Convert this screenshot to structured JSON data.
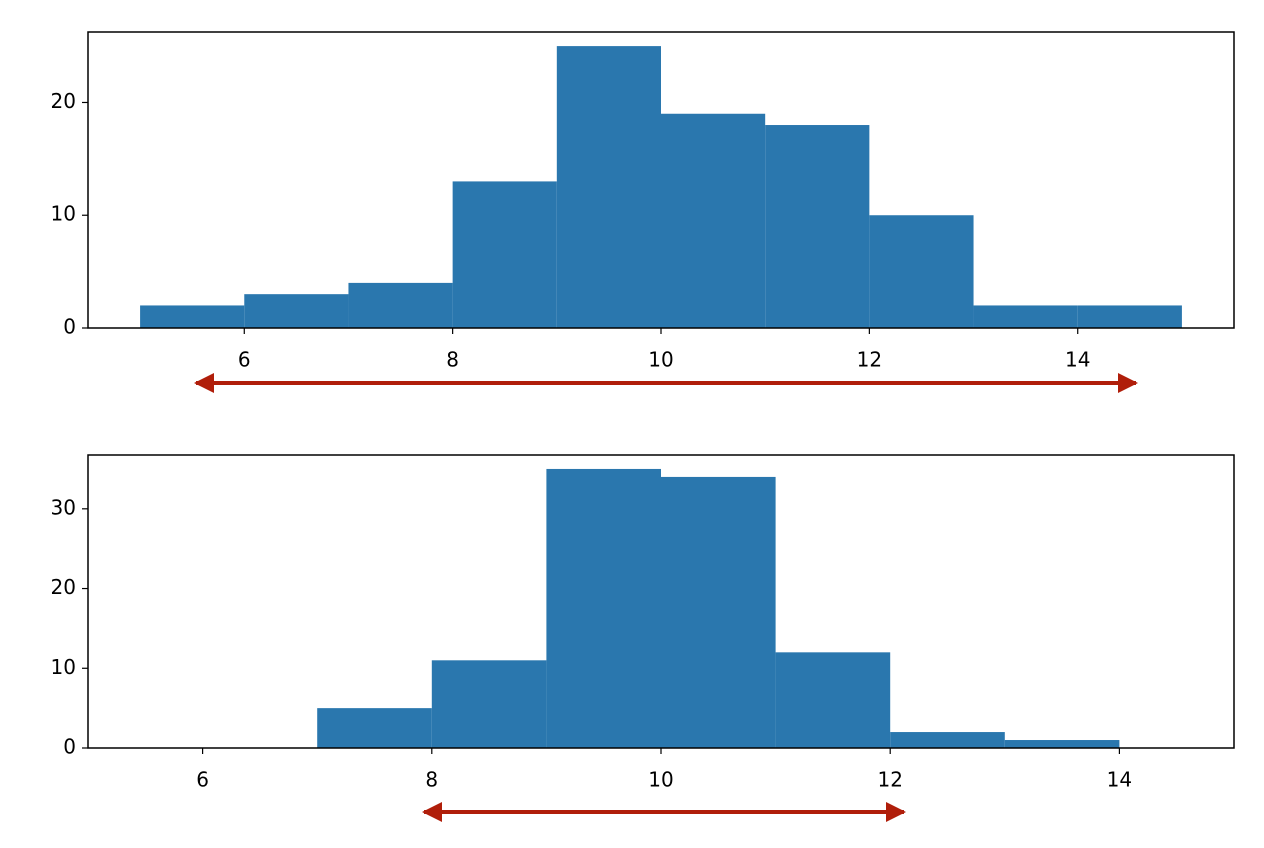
{
  "chart_data": [
    {
      "type": "histogram",
      "bins": [
        5,
        6,
        7,
        8,
        9,
        10,
        11,
        12,
        13,
        14,
        15
      ],
      "values": [
        2,
        3,
        4,
        13,
        25,
        19,
        18,
        10,
        2,
        2
      ],
      "color": "#2a77ae",
      "xlim": [
        4.5,
        15.5
      ],
      "xticks": [
        6,
        8,
        10,
        12,
        14
      ],
      "ylim": [
        0,
        26.25
      ],
      "yticks": [
        0,
        10,
        20
      ],
      "grid": false
    },
    {
      "type": "histogram",
      "bins": [
        7,
        8,
        9,
        10,
        11,
        12,
        13,
        14
      ],
      "values": [
        5,
        11,
        35,
        34,
        12,
        2,
        1
      ],
      "color": "#2a77ae",
      "xlim": [
        5,
        15
      ],
      "xticks": [
        6,
        8,
        10,
        12,
        14
      ],
      "ylim": [
        0,
        36.75
      ],
      "yticks": [
        0,
        10,
        20,
        30
      ],
      "grid": false
    }
  ]
}
